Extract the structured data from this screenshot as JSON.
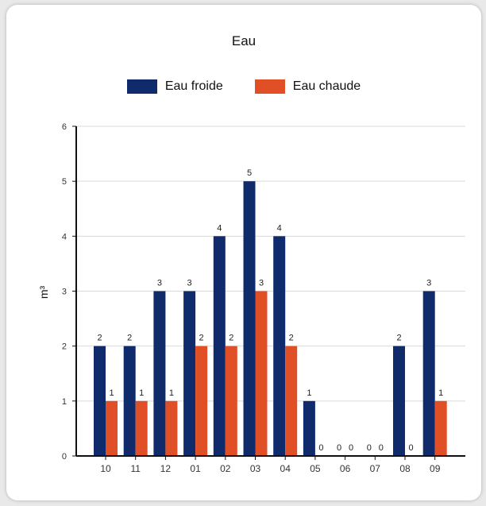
{
  "chart_data": {
    "type": "bar",
    "title": "Eau",
    "ylabel": "m³",
    "xlabel": "",
    "ylim": [
      0,
      6
    ],
    "yticks": [
      0,
      1,
      2,
      3,
      4,
      5,
      6
    ],
    "grid": true,
    "legend_position": "top",
    "categories": [
      "10",
      "11",
      "12",
      "01",
      "02",
      "03",
      "04",
      "05",
      "06",
      "07",
      "08",
      "09"
    ],
    "series": [
      {
        "name": "Eau froide",
        "color": "#0f2b6b",
        "values": [
          2,
          2,
          3,
          3,
          4,
          5,
          4,
          1,
          0,
          0,
          2,
          3
        ]
      },
      {
        "name": "Eau chaude",
        "color": "#e04f26",
        "values": [
          1,
          1,
          1,
          2,
          2,
          3,
          2,
          0,
          0,
          0,
          0,
          1
        ]
      }
    ]
  }
}
